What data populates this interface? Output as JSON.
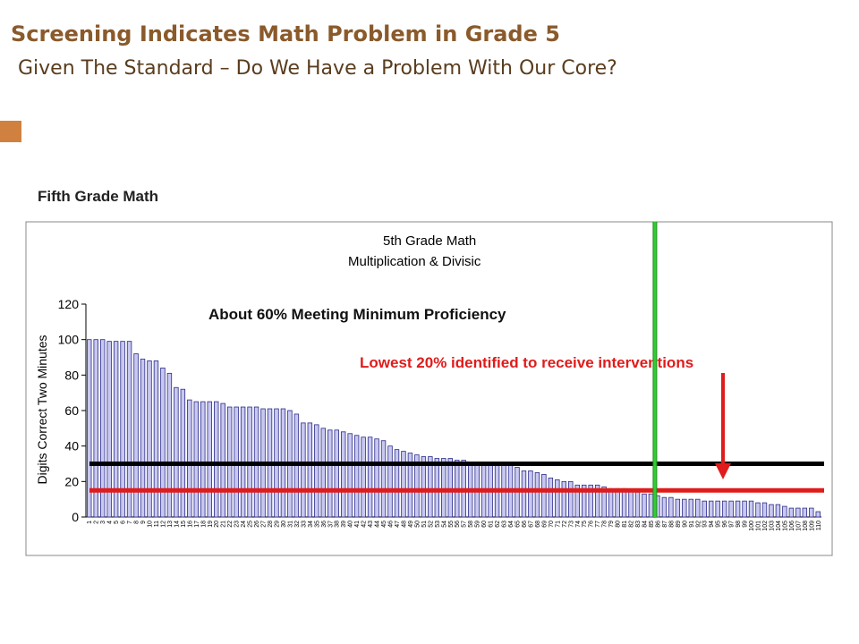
{
  "slide": {
    "title": "Screening Indicates Math Problem in Grade 5",
    "subtitle": "Given The Standard – Do We Have a Problem With Our Core?",
    "section_label": "Fifth Grade Math",
    "accent_color": "#d0813f"
  },
  "chart_data": {
    "type": "bar",
    "title_line1": "5th Grade Math",
    "title_line2": "Multiplication & Divisic",
    "xlabel": "",
    "ylabel": "Digits Correct Two Minutes",
    "ylim": [
      0,
      120
    ],
    "yticks": [
      0,
      20,
      40,
      60,
      80,
      100,
      120
    ],
    "grid": false,
    "bar_color": "#c8c8f0",
    "bar_edge_color": "#2a2a8a",
    "categories": [
      "1",
      "2",
      "3",
      "4",
      "5",
      "6",
      "7",
      "8",
      "9",
      "10",
      "11",
      "12",
      "13",
      "14",
      "15",
      "16",
      "17",
      "18",
      "19",
      "20",
      "21",
      "22",
      "23",
      "24",
      "25",
      "26",
      "27",
      "28",
      "29",
      "30",
      "31",
      "32",
      "33",
      "34",
      "35",
      "36",
      "37",
      "38",
      "39",
      "40",
      "41",
      "42",
      "43",
      "44",
      "45",
      "46",
      "47",
      "48",
      "49",
      "50",
      "51",
      "52",
      "53",
      "54",
      "55",
      "56",
      "57",
      "58",
      "59",
      "60",
      "61",
      "62",
      "63",
      "64",
      "65",
      "66",
      "67",
      "68",
      "69",
      "70",
      "71",
      "72",
      "73",
      "74",
      "75",
      "76",
      "77",
      "78",
      "79",
      "80",
      "81",
      "82",
      "83",
      "84",
      "85",
      "86",
      "87",
      "88",
      "89",
      "90",
      "91",
      "92",
      "93",
      "94",
      "95",
      "96",
      "97",
      "98",
      "99",
      "100",
      "101",
      "102",
      "103",
      "104",
      "105",
      "106",
      "107",
      "108",
      "109",
      "110"
    ],
    "values": [
      100,
      100,
      100,
      99,
      99,
      99,
      99,
      92,
      89,
      88,
      88,
      84,
      81,
      73,
      72,
      66,
      65,
      65,
      65,
      65,
      64,
      62,
      62,
      62,
      62,
      62,
      61,
      61,
      61,
      61,
      60,
      58,
      53,
      53,
      52,
      50,
      49,
      49,
      48,
      47,
      46,
      45,
      45,
      44,
      43,
      40,
      38,
      37,
      36,
      35,
      34,
      34,
      33,
      33,
      33,
      32,
      32,
      31,
      31,
      31,
      31,
      30,
      30,
      29,
      28,
      26,
      26,
      25,
      24,
      22,
      21,
      20,
      20,
      18,
      18,
      18,
      18,
      17,
      16,
      16,
      16,
      15,
      14,
      13,
      13,
      12,
      11,
      11,
      10,
      10,
      10,
      10,
      9,
      9,
      9,
      9,
      9,
      9,
      9,
      9,
      8,
      8,
      7,
      7,
      6,
      5,
      5,
      5,
      5,
      3
    ],
    "reference_lines": [
      {
        "name": "benchmark",
        "value": 30,
        "color": "#000000"
      },
      {
        "name": "lowest-20-cutoff",
        "value": 15,
        "color": "#e01b1b"
      }
    ],
    "cutoff_marker": {
      "after_category": "86",
      "color": "#33cc33"
    },
    "annotations": {
      "proficiency": "About 60% Meeting Minimum Proficiency",
      "intervention": "Lowest 20% identified to receive interventions",
      "intervention_color": "#e01b1b"
    }
  }
}
